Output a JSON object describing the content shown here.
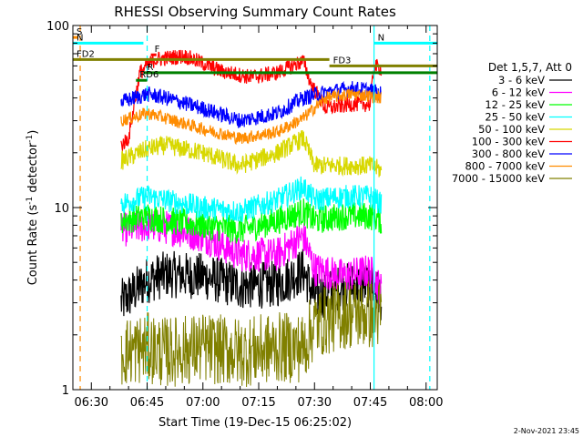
{
  "chart_data": {
    "type": "line",
    "title": "RHESSI Observing Summary Count Rates",
    "xlabel": "Start Time (19-Dec-15 06:25:02)",
    "ylabel_parts": [
      "Count Rate (s",
      "-1",
      " detector",
      "-1",
      ")"
    ],
    "yscale": "log",
    "ylim": [
      1,
      100
    ],
    "xlim": [
      "06:25:02",
      "08:03:00"
    ],
    "y_ticks": [
      {
        "value": 1,
        "label": "1"
      },
      {
        "value": 10,
        "label": "10"
      },
      {
        "value": 100,
        "label": "100"
      }
    ],
    "x_ticks": [
      "06:30",
      "06:45",
      "07:00",
      "07:15",
      "07:30",
      "07:45",
      "08:00"
    ],
    "footer_date": "2-Nov-2021 23:45",
    "legend": {
      "title": "Det 1,5,7, Att 0",
      "placement": "right",
      "entries": [
        {
          "label": "3 - 6 keV",
          "color": "#000000"
        },
        {
          "label": "6 - 12 keV",
          "color": "#ff00ff"
        },
        {
          "label": "12 - 25 keV",
          "color": "#00ff00"
        },
        {
          "label": "25 - 50 keV",
          "color": "#00ffff"
        },
        {
          "label": "50 - 100 keV",
          "color": "#d8d800"
        },
        {
          "label": "100 - 300 keV",
          "color": "#ff0000"
        },
        {
          "label": "300 - 800 keV",
          "color": "#0000ff"
        },
        {
          "label": "800 - 7000 keV",
          "color": "#ff8c00"
        },
        {
          "label": "7000 - 15000 keV",
          "color": "#808000"
        }
      ]
    },
    "data_start": "06:38",
    "data_end": "07:48",
    "series": [
      {
        "name": "3 - 6 keV",
        "color": "#000000",
        "noise": 0.3,
        "points": [
          [
            "06:38",
            3.0
          ],
          [
            "06:45",
            4.0
          ],
          [
            "06:50",
            4.3
          ],
          [
            "07:00",
            4.2
          ],
          [
            "07:10",
            3.7
          ],
          [
            "07:20",
            3.8
          ],
          [
            "07:27",
            4.5
          ],
          [
            "07:30",
            3.2
          ],
          [
            "07:38",
            3.7
          ],
          [
            "07:45",
            3.8
          ],
          [
            "07:48",
            3.2
          ]
        ]
      },
      {
        "name": "6 - 12 keV",
        "color": "#ff00ff",
        "noise": 0.22,
        "points": [
          [
            "06:38",
            7.5
          ],
          [
            "06:45",
            8.0
          ],
          [
            "06:50",
            7.8
          ],
          [
            "07:00",
            7.0
          ],
          [
            "07:10",
            5.5
          ],
          [
            "07:20",
            5.5
          ],
          [
            "07:27",
            7.0
          ],
          [
            "07:30",
            4.6
          ],
          [
            "07:38",
            4.2
          ],
          [
            "07:45",
            4.5
          ],
          [
            "07:48",
            3.5
          ]
        ]
      },
      {
        "name": "12 - 25 keV",
        "color": "#00ff00",
        "noise": 0.18,
        "points": [
          [
            "06:38",
            8.5
          ],
          [
            "06:45",
            9.0
          ],
          [
            "06:50",
            8.5
          ],
          [
            "07:00",
            8.0
          ],
          [
            "07:10",
            7.5
          ],
          [
            "07:20",
            8.5
          ],
          [
            "07:27",
            9.5
          ],
          [
            "07:30",
            8.5
          ],
          [
            "07:38",
            9.0
          ],
          [
            "07:45",
            9.0
          ],
          [
            "07:48",
            8.5
          ]
        ]
      },
      {
        "name": "25 - 50 keV",
        "color": "#00ffff",
        "noise": 0.15,
        "points": [
          [
            "06:38",
            10.5
          ],
          [
            "06:45",
            11.5
          ],
          [
            "06:50",
            11.0
          ],
          [
            "07:00",
            10.0
          ],
          [
            "07:10",
            9.5
          ],
          [
            "07:20",
            11.0
          ],
          [
            "07:27",
            13.0
          ],
          [
            "07:30",
            11.0
          ],
          [
            "07:38",
            11.5
          ],
          [
            "07:45",
            11.5
          ],
          [
            "07:48",
            10.5
          ]
        ]
      },
      {
        "name": "50 - 100 keV",
        "color": "#d8d800",
        "noise": 0.12,
        "points": [
          [
            "06:38",
            18
          ],
          [
            "06:45",
            21
          ],
          [
            "06:50",
            22
          ],
          [
            "07:00",
            20
          ],
          [
            "07:10",
            17
          ],
          [
            "07:20",
            20
          ],
          [
            "07:27",
            24
          ],
          [
            "07:30",
            17
          ],
          [
            "07:38",
            17
          ],
          [
            "07:45",
            17
          ],
          [
            "07:48",
            16
          ]
        ]
      },
      {
        "name": "100 - 300 keV",
        "color": "#ff0000",
        "noise": 0.1,
        "points": [
          [
            "06:38",
            22
          ],
          [
            "06:40",
            24
          ],
          [
            "06:43",
            55
          ],
          [
            "06:47",
            65
          ],
          [
            "06:55",
            68
          ],
          [
            "07:00",
            62
          ],
          [
            "07:05",
            56
          ],
          [
            "07:13",
            52
          ],
          [
            "07:20",
            55
          ],
          [
            "07:27",
            64
          ],
          [
            "07:29",
            48
          ],
          [
            "07:33",
            35
          ],
          [
            "07:40",
            37
          ],
          [
            "07:45",
            37
          ],
          [
            "07:46",
            60
          ],
          [
            "07:48",
            58
          ]
        ]
      },
      {
        "name": "300 - 800 keV",
        "color": "#0000ff",
        "noise": 0.1,
        "points": [
          [
            "06:38",
            38
          ],
          [
            "06:45",
            42
          ],
          [
            "06:50",
            40
          ],
          [
            "07:00",
            35
          ],
          [
            "07:10",
            30
          ],
          [
            "07:20",
            33
          ],
          [
            "07:27",
            40
          ],
          [
            "07:33",
            43
          ],
          [
            "07:40",
            45
          ],
          [
            "07:45",
            44
          ],
          [
            "07:48",
            42
          ]
        ]
      },
      {
        "name": "800 - 7000 keV",
        "color": "#ff8c00",
        "noise": 0.08,
        "points": [
          [
            "06:38",
            30
          ],
          [
            "06:45",
            33
          ],
          [
            "06:50",
            31
          ],
          [
            "07:00",
            27
          ],
          [
            "07:10",
            24
          ],
          [
            "07:20",
            26
          ],
          [
            "07:27",
            31
          ],
          [
            "07:33",
            40
          ],
          [
            "07:40",
            42
          ],
          [
            "07:45",
            41
          ],
          [
            "07:48",
            40
          ]
        ]
      },
      {
        "name": "7000 - 15000 keV",
        "color": "#808000",
        "noise": 0.45,
        "points": [
          [
            "06:38",
            1.6
          ],
          [
            "06:45",
            1.7
          ],
          [
            "06:50",
            1.6
          ],
          [
            "07:00",
            1.7
          ],
          [
            "07:10",
            1.6
          ],
          [
            "07:20",
            1.7
          ],
          [
            "07:27",
            1.7
          ],
          [
            "07:30",
            2.3
          ],
          [
            "07:38",
            2.6
          ],
          [
            "07:45",
            2.6
          ],
          [
            "07:48",
            2.6
          ]
        ]
      }
    ],
    "flag_bars": [
      {
        "label": "S",
        "color": "#ff8c00",
        "start": "06:25:02",
        "end": "06:26:30",
        "y": 86
      },
      {
        "label": "N",
        "color": "#00ffff",
        "start": "06:25:02",
        "end": "06:44:00",
        "y": 80
      },
      {
        "label": "N",
        "color": "#00ffff",
        "start": "07:46:00",
        "end": "08:03:00",
        "y": 80
      },
      {
        "label": "F",
        "color": "#ff0000",
        "start": "06:46:00",
        "end": "06:47:30",
        "y": 69
      },
      {
        "label": "FD2",
        "color": "#808000",
        "start": "06:25:02",
        "end": "07:34:00",
        "y": 65
      },
      {
        "label": "FD3",
        "color": "#808000",
        "start": "07:34:00",
        "end": "08:03:00",
        "y": 60
      },
      {
        "label": "R",
        "color": "#008000",
        "start": "06:44:00",
        "end": "08:03:00",
        "y": 55
      },
      {
        "label": "RD6",
        "color": "#008000",
        "start": "06:42:00",
        "end": "06:45:00",
        "y": 50
      }
    ],
    "vlines": [
      {
        "time": "06:27",
        "color": "#ff8c00",
        "style": "dashed"
      },
      {
        "time": "06:45",
        "color": "#00ffff",
        "style": "dashed"
      },
      {
        "time": "07:46",
        "color": "#00ffff",
        "style": "solid"
      },
      {
        "time": "08:01",
        "color": "#00ffff",
        "style": "dashed"
      }
    ]
  }
}
